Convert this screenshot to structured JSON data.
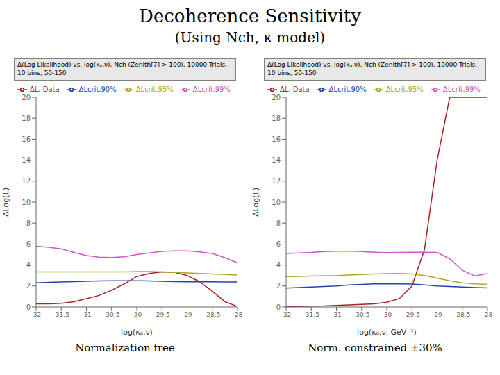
{
  "title": "Decoherence Sensitivity",
  "subtitle": "(Using Nch, κ model)",
  "chart_data": [
    {
      "type": "line",
      "title": "Δ(Log Likelihood) vs. log(κₐ,ν), Nch (Zenith[7] > 100), 10000 Trials, 10 bins, 50-150",
      "x_label": "log(κₐ,ν)",
      "y_label": "ΔLog(L)",
      "annotation": "Normalization free",
      "x": [
        -32,
        -31.75,
        -31.5,
        -31.25,
        -31,
        -30.75,
        -30.5,
        -30.25,
        -30,
        -29.75,
        -29.5,
        -29.25,
        -29,
        -28.75,
        -28.5,
        -28.25,
        -28
      ],
      "xlim": [
        -32,
        -28
      ],
      "xticks": [
        -32,
        -31.5,
        -31,
        -30.5,
        -30,
        -29.5,
        -29,
        -28.5,
        -28
      ],
      "ylim": [
        0,
        20
      ],
      "yticks": [
        0,
        2,
        4,
        6,
        8,
        10,
        12,
        14,
        16,
        18,
        20
      ],
      "grid": false,
      "legend": "upper right",
      "series": [
        {
          "name": "ΔL, Data",
          "color": "#aa2222",
          "values": [
            0.3,
            0.3,
            0.35,
            0.5,
            0.8,
            1.1,
            1.6,
            2.2,
            2.9,
            3.2,
            3.35,
            3.3,
            3.0,
            2.4,
            1.5,
            0.5,
            0.05
          ]
        },
        {
          "name": "ΔLcrit,90%",
          "color": "#2244aa",
          "values": [
            2.3,
            2.35,
            2.38,
            2.42,
            2.45,
            2.48,
            2.5,
            2.5,
            2.5,
            2.48,
            2.45,
            2.42,
            2.4,
            2.4,
            2.4,
            2.38,
            2.38
          ]
        },
        {
          "name": "ΔLcrit,95%",
          "color": "#aaaa22",
          "values": [
            3.35,
            3.35,
            3.35,
            3.35,
            3.35,
            3.35,
            3.35,
            3.35,
            3.38,
            3.38,
            3.35,
            3.3,
            3.25,
            3.2,
            3.15,
            3.1,
            3.05
          ]
        },
        {
          "name": "ΔLcrit,99%",
          "color": "#cc55cc",
          "values": [
            5.8,
            5.7,
            5.55,
            5.2,
            4.9,
            4.75,
            4.72,
            4.78,
            5.0,
            5.15,
            5.3,
            5.35,
            5.35,
            5.25,
            5.1,
            4.7,
            4.2
          ]
        }
      ]
    },
    {
      "type": "line",
      "title": "Δ(Log Likelihood) vs. log(κₐ,ν), Nch (Zenith[7] > 100), 10000 Trials, 10 bins, 50-150",
      "x_label": "log(κₐ,ν, GeV⁻¹)",
      "y_label": "ΔLog(L)",
      "annotation": "Norm. constrained ±30%",
      "x": [
        -32,
        -31.75,
        -31.5,
        -31.25,
        -31,
        -30.75,
        -30.5,
        -30.25,
        -30,
        -29.75,
        -29.5,
        -29.25,
        -29,
        -28.75,
        -28.5,
        -28.25,
        -28
      ],
      "xlim": [
        -32,
        -28
      ],
      "xticks": [
        -32,
        -31.5,
        -31,
        -30.5,
        -30,
        -29.5,
        -29,
        -28.5,
        -28
      ],
      "ylim": [
        0,
        20
      ],
      "yticks": [
        0,
        2,
        4,
        6,
        8,
        10,
        12,
        14,
        16,
        18,
        20
      ],
      "grid": false,
      "legend": "upper right",
      "series": [
        {
          "name": "ΔL, Data",
          "color": "#aa2222",
          "values": [
            0.05,
            0.05,
            0.08,
            0.1,
            0.15,
            0.2,
            0.25,
            0.3,
            0.45,
            0.8,
            2.0,
            5.5,
            14.0,
            20.0,
            20.0,
            20.0,
            20.0
          ]
        },
        {
          "name": "ΔLcrit,90%",
          "color": "#2244aa",
          "values": [
            1.8,
            1.85,
            1.9,
            1.95,
            2.0,
            2.1,
            2.15,
            2.2,
            2.22,
            2.2,
            2.18,
            2.1,
            2.0,
            1.95,
            1.9,
            1.85,
            1.82
          ]
        },
        {
          "name": "ΔLcrit,95%",
          "color": "#aaaa22",
          "values": [
            2.9,
            2.92,
            2.95,
            2.98,
            3.0,
            3.05,
            3.1,
            3.15,
            3.18,
            3.2,
            3.15,
            3.0,
            2.75,
            2.5,
            2.3,
            2.2,
            2.15
          ]
        },
        {
          "name": "ΔLcrit,99%",
          "color": "#cc55cc",
          "values": [
            5.1,
            5.15,
            5.2,
            5.28,
            5.32,
            5.32,
            5.28,
            5.22,
            5.18,
            5.2,
            5.22,
            5.22,
            5.2,
            4.6,
            3.5,
            2.95,
            3.2
          ]
        }
      ]
    }
  ]
}
